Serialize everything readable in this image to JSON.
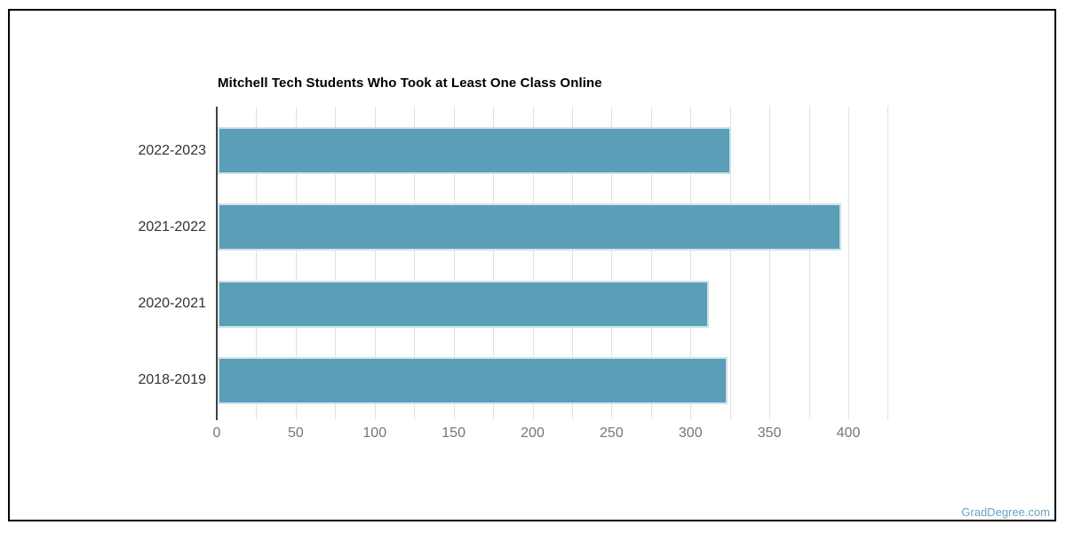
{
  "watermark": {
    "label": "GradDegree.com",
    "color": "#6AA2C0"
  },
  "chart_data": {
    "type": "bar",
    "orientation": "horizontal",
    "title": "Mitchell Tech Students Who Took at Least One Class Online",
    "categories": [
      "2022-2023",
      "2021-2022",
      "2020-2021",
      "2018-2019"
    ],
    "values": [
      325,
      395,
      311,
      323
    ],
    "xlabel": "",
    "ylabel": "",
    "xlim": [
      0,
      425
    ],
    "x_tick_labels": [
      "0",
      "50",
      "100",
      "150",
      "200",
      "250",
      "300",
      "350",
      "400"
    ],
    "labeled_tick_step": 50,
    "grid": true,
    "grid_step": 25,
    "legend": false,
    "colors": {
      "bar_fill": "#5A9EB8",
      "bar_border": "#CDE2EA",
      "grid_line": "#E0E0E0",
      "axis_line": "#424242",
      "title_text": "#000000",
      "category_text": "#333333",
      "tick_text": "#757575"
    }
  }
}
